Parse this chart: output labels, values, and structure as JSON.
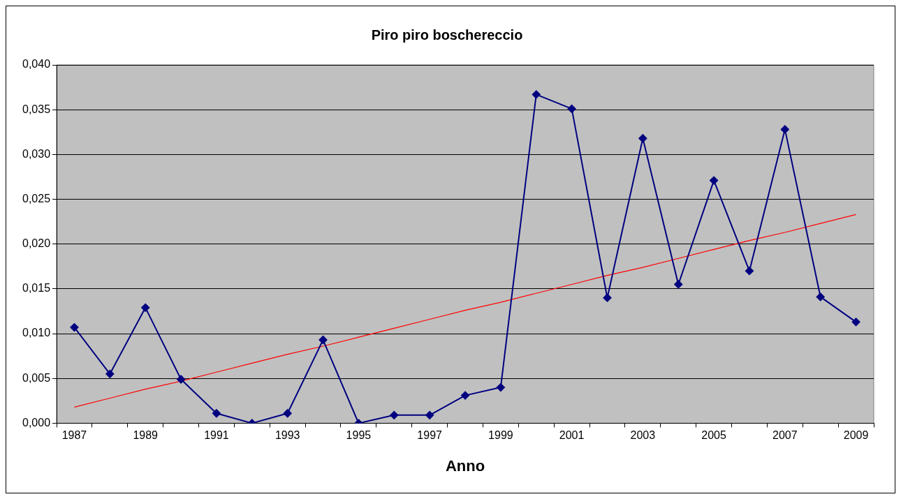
{
  "chart_data": {
    "type": "line",
    "title": "Piro piro boschereccio",
    "xlabel": "Anno",
    "categories": [
      "1987",
      null,
      "1989",
      null,
      "1991",
      null,
      "1993",
      null,
      "1995",
      null,
      "1997",
      null,
      "1999",
      null,
      "2001",
      null,
      "2003",
      null,
      "2005",
      null,
      "2007",
      null,
      "2009"
    ],
    "series": [
      {
        "color": "#000080",
        "marker": "diamond",
        "values": [
          0.0107,
          0.0055,
          0.0129,
          0.0049,
          0.0011,
          0,
          0.0011,
          0.0093,
          0,
          0.0009,
          0.0009,
          0.0031,
          0.004,
          0.0367,
          0.0351,
          0.014,
          0.0318,
          0.0155,
          0.0271,
          0.017,
          0.0328,
          0.0141,
          0.0113
        ]
      },
      {
        "type": "line",
        "color": "#ff0000",
        "marker": "none",
        "values": [
          0.0018,
          0.0028,
          0.0038,
          0.0047,
          0.0057,
          0.0067,
          0.0077,
          0.0086,
          0.0096,
          0.0106,
          0.0116,
          0.0126,
          0.0135,
          0.0145,
          0.0155,
          0.0165,
          0.0174,
          0.0184,
          0.0194,
          0.0204,
          0.0213,
          0.0223,
          0.0233
        ]
      }
    ],
    "ylim": [
      0,
      0.04
    ],
    "yticks": [
      {
        "value": 0,
        "label": "0,000"
      },
      {
        "value": 0.005,
        "label": "0,005"
      },
      {
        "value": 0.01,
        "label": "0,010"
      },
      {
        "value": 0.015,
        "label": "0,015"
      },
      {
        "value": 0.02,
        "label": "0,020"
      },
      {
        "value": 0.025,
        "label": "0,025"
      },
      {
        "value": 0.03,
        "label": "0,030"
      },
      {
        "value": 0.035,
        "label": "0,035"
      },
      {
        "value": 0.04,
        "label": "0,040"
      }
    ],
    "grid": "y",
    "legend": false
  }
}
